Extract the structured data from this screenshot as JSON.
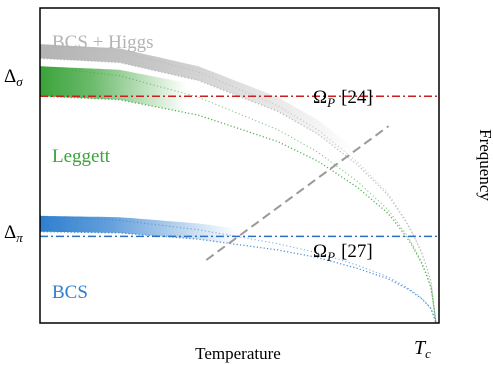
{
  "chart_data": {
    "type": "line",
    "title": "",
    "xlabel": "Temperature",
    "ylabel": "Frequency",
    "x_ticks": [
      {
        "label": "T",
        "sub": "c",
        "x": 1.0
      }
    ],
    "y_ticks": [
      {
        "label": "Δ",
        "sub": "σ",
        "y": 0.84
      },
      {
        "label": "Δ",
        "sub": "π",
        "y": 0.29
      }
    ],
    "xlim": [
      0,
      1
    ],
    "ylim": [
      0,
      1
    ],
    "grid": false,
    "series": [
      {
        "name": "BCS + Higgs",
        "color": "#b3b3b3",
        "delta0": 0.84,
        "band_width": 0.045,
        "fade_end": 0.8,
        "points": [
          [
            0.0,
            0.84
          ],
          [
            0.2,
            0.827
          ],
          [
            0.4,
            0.77
          ],
          [
            0.6,
            0.672
          ],
          [
            0.7,
            0.601
          ],
          [
            0.8,
            0.504
          ],
          [
            0.88,
            0.405
          ],
          [
            0.93,
            0.31
          ],
          [
            0.96,
            0.235
          ],
          [
            0.98,
            0.165
          ],
          [
            0.99,
            0.118
          ],
          [
            1.0,
            0.0
          ]
        ]
      },
      {
        "name": "Leggett",
        "color": "#3aa33a",
        "delta0": 0.72,
        "band_width": 0.095,
        "fade_end": 0.37,
        "points": [
          [
            0.0,
            0.72
          ],
          [
            0.2,
            0.709
          ],
          [
            0.4,
            0.66
          ],
          [
            0.6,
            0.576
          ],
          [
            0.7,
            0.515
          ],
          [
            0.8,
            0.432
          ],
          [
            0.88,
            0.347
          ],
          [
            0.93,
            0.266
          ],
          [
            0.96,
            0.2
          ],
          [
            0.98,
            0.141
          ],
          [
            0.99,
            0.101
          ],
          [
            1.0,
            0.0
          ]
        ]
      },
      {
        "name": "BCS",
        "color": "#2f7fcf",
        "delta0": 0.29,
        "band_width": 0.05,
        "fade_end": 0.5,
        "points": [
          [
            0.0,
            0.29
          ],
          [
            0.2,
            0.286
          ],
          [
            0.4,
            0.266
          ],
          [
            0.6,
            0.232
          ],
          [
            0.7,
            0.208
          ],
          [
            0.8,
            0.174
          ],
          [
            0.88,
            0.14
          ],
          [
            0.93,
            0.107
          ],
          [
            0.96,
            0.081
          ],
          [
            0.98,
            0.057
          ],
          [
            0.99,
            0.041
          ],
          [
            1.0,
            0.0
          ]
        ]
      }
    ],
    "reference_lines": [
      {
        "name": "Ω",
        "sub": "P",
        "ref": "[24]",
        "y": 0.72,
        "color": "#cc2020"
      },
      {
        "name": "Ω",
        "sub": "P",
        "ref": "[27]",
        "y": 0.275,
        "color": "#3070c0"
      }
    ],
    "diagonal_line": {
      "color": "#999999",
      "points": [
        [
          0.42,
          0.2
        ],
        [
          0.88,
          0.625
        ]
      ]
    }
  }
}
